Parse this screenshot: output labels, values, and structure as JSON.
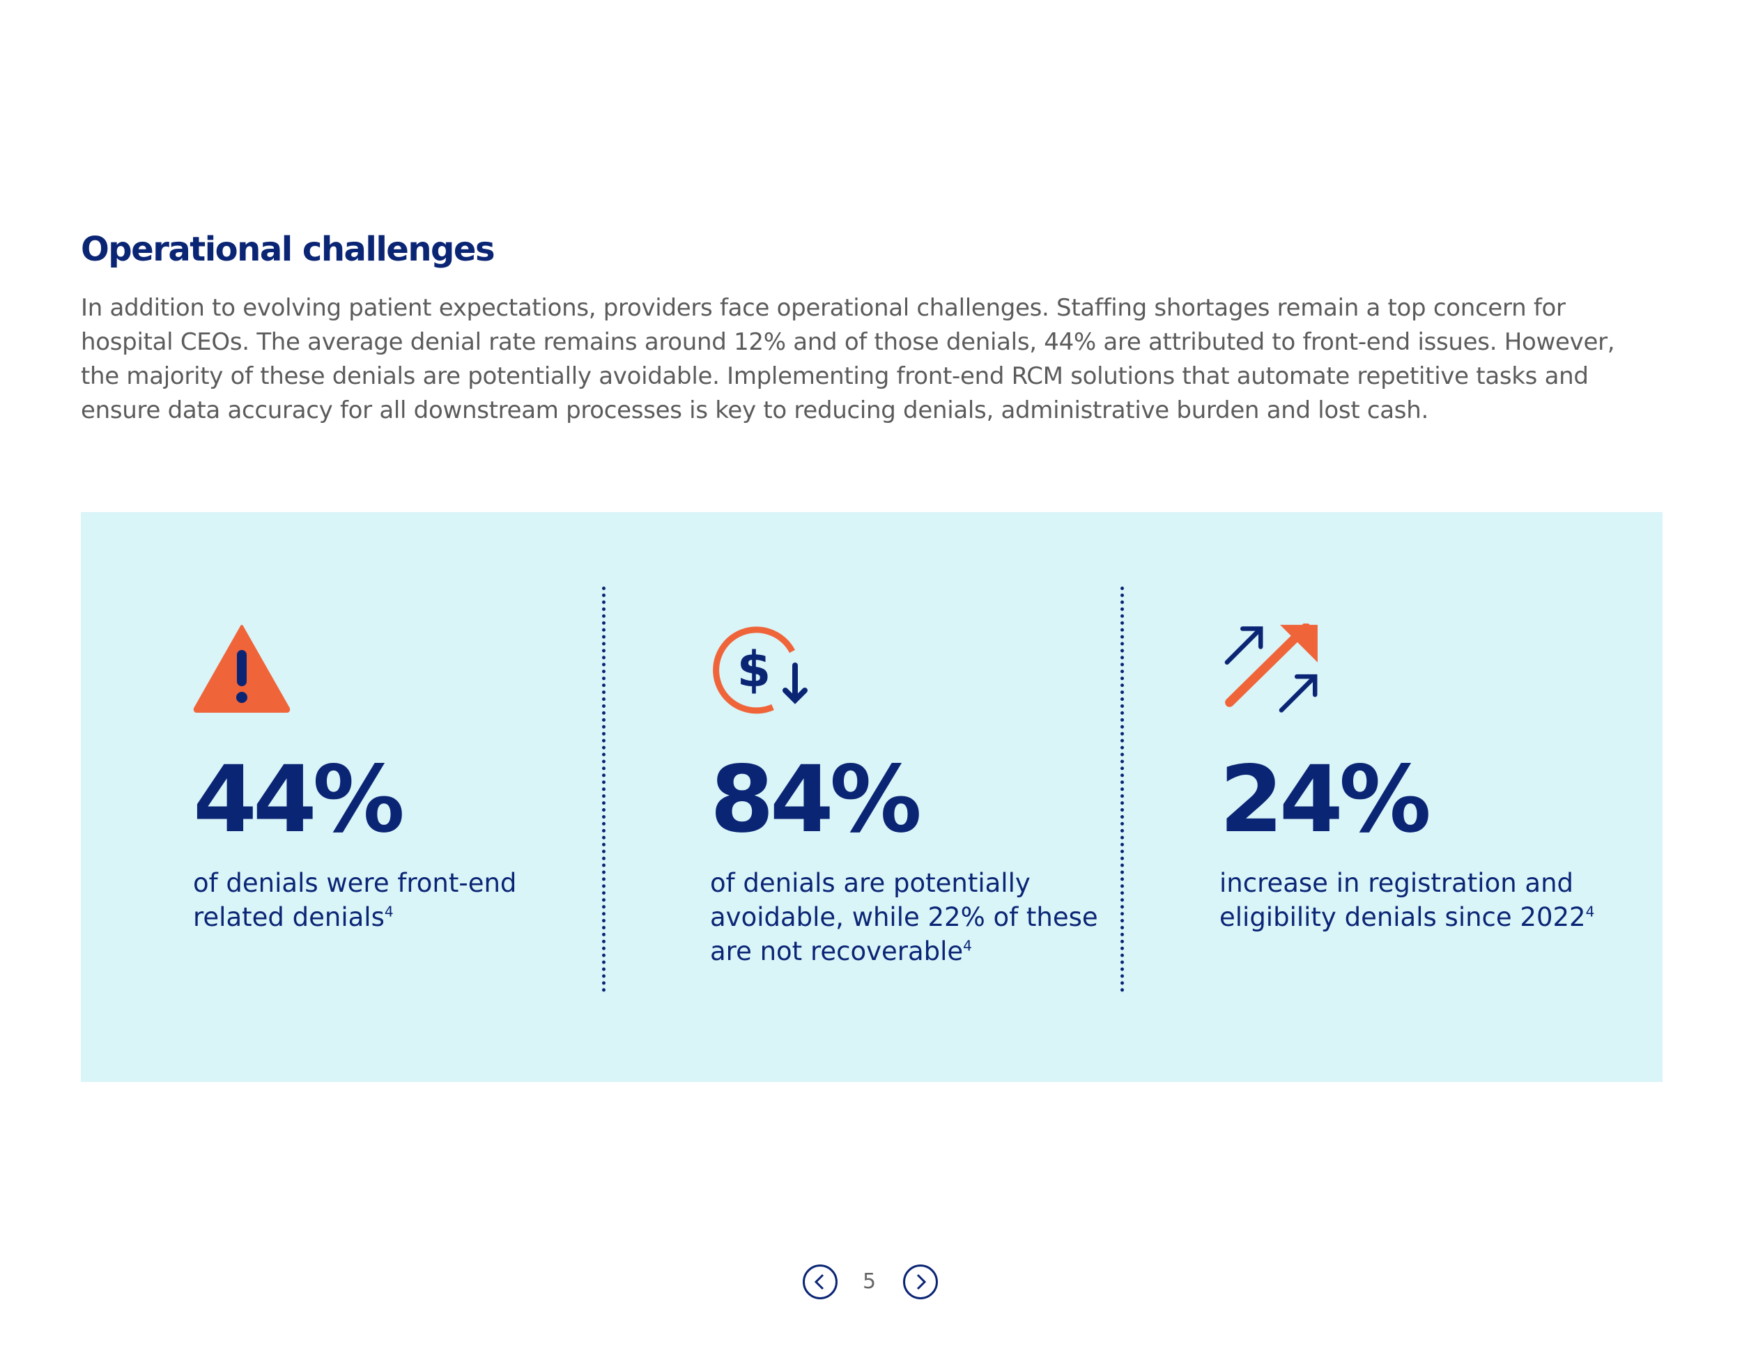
{
  "header": {
    "title": "Operational challenges"
  },
  "intro": "In addition to evolving patient expectations, providers face operational challenges. Staffing shortages remain a top concern for hospital CEOs. The average denial rate remains around 12% and of those denials, 44% are attributed to front-end issues. However, the majority of these denials are potentially avoidable. Implementing front-end RCM solutions that automate repetitive tasks and ensure data accuracy for all downstream processes is key to reducing denials, administrative burden and lost cash.",
  "stats": [
    {
      "value": "44%",
      "text": "of denials were front-end related denials",
      "note": "4"
    },
    {
      "value": "84%",
      "text": "of denials are potentially avoidable, while 22% of these are not recoverable",
      "note": "4"
    },
    {
      "value": "24%",
      "text": "increase in registration and eligibility denials since 2022",
      "note": "4"
    }
  ],
  "footer": {
    "page": "5"
  }
}
